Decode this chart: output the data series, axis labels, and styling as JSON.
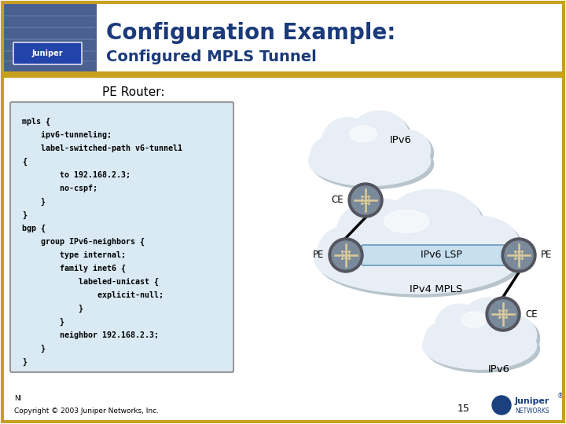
{
  "title_line1": "Configuration Example:",
  "title_line2": "Configured MPLS Tunnel",
  "title_color": "#1a3a7a",
  "header_bar_color": "#c8a020",
  "pe_router_label": "PE Router:",
  "code_lines": [
    "mpls {",
    "    ipv6-tunneling;",
    "    label-switched-path v6-tunnel1",
    "{",
    "        to 192.168.2.3;",
    "        no-cspf;",
    "    }",
    "}",
    "bgp {",
    "    group IPv6-neighbors {",
    "        type internal;",
    "        family inet6 {",
    "            labeled-unicast {",
    "                explicit-null;",
    "            }",
    "        }",
    "        neighbor 192.168.2.3;",
    "    }",
    "}"
  ],
  "code_bg": "#daeaf5",
  "code_border": "#999999",
  "ipv6_lsp_label": "IPv6 LSP",
  "ipv4_mpls_label": "IPv4 MPLS",
  "node_ce1_label": "CE",
  "node_pe1_label": "PE",
  "node_pe2_label": "PE",
  "node_ce2_label": "CE",
  "ipv6_cloud1": "IPv6",
  "ipv6_cloud2": "IPv6",
  "footer_left1": "NI",
  "footer_left2": "Copyright © 2003 Juniper Networks, Inc.",
  "page_num": "15",
  "bg_color": "#ffffff",
  "border_color": "#c8a020",
  "lsp_bar_color": "#c8dff0",
  "lsp_bar_border": "#6699bb",
  "cloud_color": "#e8eef5",
  "cloud_shadow": "#b8c4cc",
  "router_outer": "#555560",
  "router_inner": "#7a8a9a",
  "router_lines": "#ddcc99",
  "header_blue_color": "#4a6090"
}
